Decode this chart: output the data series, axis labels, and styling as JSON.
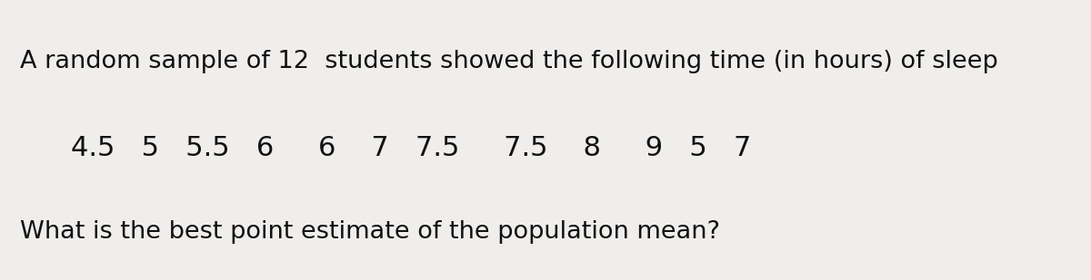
{
  "line1": "A random sample of 12  students showed the following time (in hours) of sleep",
  "line2": "4.5   5   5.5   6     6    7   7.5     7.5    8     9   5   7",
  "line3": "What is the best point estimate of the population mean?",
  "background_color": "#f0eeec",
  "text_color": "#111111",
  "font_size_line1": 19.5,
  "font_size_line2": 22,
  "font_size_line3": 19.5,
  "figwidth": 12.0,
  "figheight": 3.09
}
